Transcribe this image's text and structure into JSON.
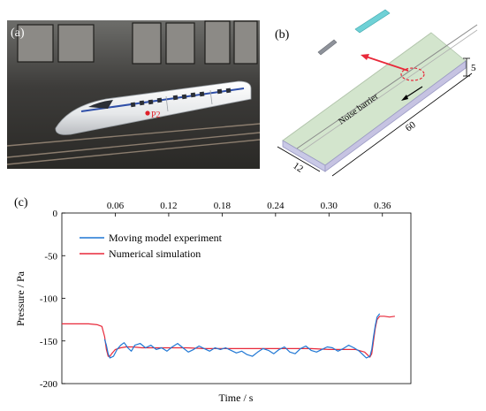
{
  "panels": {
    "a": {
      "label": "(a)",
      "marker_label": "P2"
    },
    "b": {
      "label": "(b)",
      "barrier_label": "Noise barrier",
      "dim_length": "60",
      "dim_width": "12",
      "dim_height": "5"
    },
    "c": {
      "label": "(c)"
    }
  },
  "colors": {
    "experiment": "#1f77d4",
    "simulation": "#e8293a",
    "photo_bg": "#3b3a38",
    "train_stripe": "#2f4fa8",
    "barrier_fill": "#cfe3c8",
    "marker": "#e0202a"
  },
  "chart_data": {
    "type": "line",
    "xlabel": "Time / s",
    "ylabel": "Pressure / Pa",
    "xlim": [
      0.0,
      0.392
    ],
    "ylim": [
      -200,
      0
    ],
    "x_ticks": [
      "0.06",
      "0.12",
      "0.18",
      "0.24",
      "0.30",
      "0.36"
    ],
    "x_tick_values": [
      0.06,
      0.12,
      0.18,
      0.24,
      0.3,
      0.36
    ],
    "x_axis_position": "top",
    "y_ticks": [
      "0",
      "-50",
      "-100",
      "-150",
      "-200"
    ],
    "y_tick_values": [
      0,
      -50,
      -100,
      -150,
      -200
    ],
    "legend_position": "top-left",
    "series": [
      {
        "name": "Moving model experiment",
        "color": "#1f77d4",
        "x": [
          0.048,
          0.05,
          0.052,
          0.054,
          0.058,
          0.062,
          0.066,
          0.07,
          0.074,
          0.078,
          0.082,
          0.088,
          0.094,
          0.1,
          0.106,
          0.112,
          0.118,
          0.124,
          0.13,
          0.136,
          0.142,
          0.148,
          0.154,
          0.16,
          0.166,
          0.172,
          0.178,
          0.184,
          0.19,
          0.196,
          0.202,
          0.208,
          0.214,
          0.22,
          0.226,
          0.232,
          0.238,
          0.244,
          0.25,
          0.256,
          0.262,
          0.268,
          0.274,
          0.28,
          0.286,
          0.292,
          0.298,
          0.304,
          0.31,
          0.316,
          0.322,
          0.328,
          0.334,
          0.338,
          0.342,
          0.346,
          0.348,
          0.35,
          0.352,
          0.354,
          0.357
        ],
        "y": [
          -148,
          -155,
          -165,
          -170,
          -168,
          -160,
          -155,
          -152,
          -158,
          -162,
          -155,
          -153,
          -158,
          -155,
          -160,
          -158,
          -162,
          -157,
          -153,
          -158,
          -163,
          -160,
          -156,
          -159,
          -162,
          -158,
          -160,
          -158,
          -161,
          -164,
          -162,
          -166,
          -168,
          -163,
          -159,
          -161,
          -165,
          -160,
          -157,
          -163,
          -165,
          -159,
          -156,
          -161,
          -163,
          -160,
          -157,
          -158,
          -162,
          -159,
          -155,
          -158,
          -162,
          -166,
          -170,
          -168,
          -160,
          -145,
          -132,
          -122,
          -118
        ]
      },
      {
        "name": "Numerical simulation",
        "color": "#e8293a",
        "x": [
          0.0,
          0.01,
          0.02,
          0.03,
          0.04,
          0.045,
          0.048,
          0.05,
          0.052,
          0.054,
          0.056,
          0.06,
          0.066,
          0.072,
          0.08,
          0.09,
          0.1,
          0.12,
          0.14,
          0.16,
          0.18,
          0.2,
          0.22,
          0.24,
          0.26,
          0.28,
          0.3,
          0.32,
          0.33,
          0.34,
          0.344,
          0.346,
          0.348,
          0.35,
          0.352,
          0.354,
          0.357,
          0.362,
          0.368,
          0.374
        ],
        "y": [
          -130,
          -130,
          -130,
          -130,
          -131,
          -133,
          -145,
          -160,
          -168,
          -168,
          -165,
          -160,
          -158,
          -157,
          -157,
          -158,
          -158,
          -158,
          -158,
          -159,
          -159,
          -159,
          -159,
          -159,
          -159,
          -159,
          -160,
          -160,
          -160,
          -163,
          -167,
          -169,
          -165,
          -150,
          -135,
          -125,
          -121,
          -121,
          -122,
          -121
        ]
      }
    ]
  }
}
